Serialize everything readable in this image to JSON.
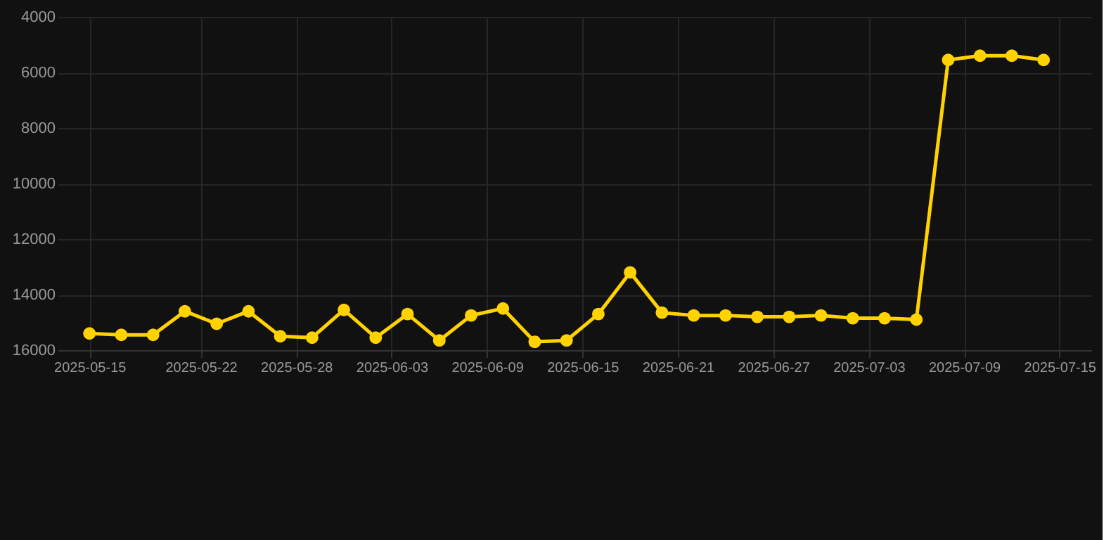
{
  "chart_data": {
    "type": "line",
    "x": [
      "2025-05-15",
      "2025-05-17",
      "2025-05-19",
      "2025-05-21",
      "2025-05-23",
      "2025-05-25",
      "2025-05-27",
      "2025-05-29",
      "2025-05-31",
      "2025-06-02",
      "2025-06-04",
      "2025-06-06",
      "2025-06-08",
      "2025-06-10",
      "2025-06-12",
      "2025-06-14",
      "2025-06-16",
      "2025-06-18",
      "2025-06-20",
      "2025-06-22",
      "2025-06-24",
      "2025-06-26",
      "2025-06-28",
      "2025-06-30",
      "2025-07-02",
      "2025-07-04",
      "2025-07-06",
      "2025-07-08",
      "2025-07-10",
      "2025-07-12",
      "2025-07-14"
    ],
    "series": [
      {
        "color": "#ffd200",
        "values": [
          15400,
          15450,
          15450,
          14600,
          15050,
          14600,
          15500,
          15550,
          14550,
          15550,
          14700,
          15650,
          14750,
          14500,
          15700,
          15650,
          14700,
          13200,
          14650,
          14750,
          14750,
          14800,
          14800,
          14750,
          14850,
          14850,
          14900,
          5550,
          5400,
          5400,
          5550
        ]
      }
    ],
    "xlim": [
      "2025-05-13",
      "2025-07-17"
    ],
    "xticks": [
      {
        "value": "2025-05-15",
        "label": "2025-05-15"
      },
      {
        "value": "2025-05-22",
        "label": "2025-05-22"
      },
      {
        "value": "2025-05-28",
        "label": "2025-05-28"
      },
      {
        "value": "2025-06-03",
        "label": "2025-06-03"
      },
      {
        "value": "2025-06-09",
        "label": "2025-06-09"
      },
      {
        "value": "2025-06-15",
        "label": "2025-06-15"
      },
      {
        "value": "2025-06-21",
        "label": "2025-06-21"
      },
      {
        "value": "2025-06-27",
        "label": "2025-06-27"
      },
      {
        "value": "2025-07-03",
        "label": "2025-07-03"
      },
      {
        "value": "2025-07-09",
        "label": "2025-07-09"
      },
      {
        "value": "2025-07-15",
        "label": "2025-07-15"
      }
    ],
    "ylim": [
      16000,
      4000
    ],
    "yticks": [
      4000,
      6000,
      8000,
      10000,
      12000,
      14000,
      16000
    ],
    "grid": true,
    "marker": "circle",
    "line_style": "solid",
    "legend": false
  }
}
